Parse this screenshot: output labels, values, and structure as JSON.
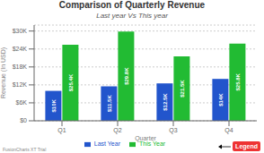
{
  "chart_data": {
    "type": "bar",
    "title": "Comparison of Quarterly Revenue",
    "subtitle": "Last year Vs This year",
    "xlabel": "Quarter",
    "ylabel": "Revenue (In USD)",
    "categories": [
      "Q1",
      "Q2",
      "Q3",
      "Q4"
    ],
    "series": [
      {
        "name": "Last Year",
        "color": "#2255cc",
        "values": [
          10000,
          11500,
          12500,
          14000
        ],
        "value_labels": [
          "$10K",
          "$11.5K",
          "$12.5K",
          "$14K"
        ]
      },
      {
        "name": "This Year",
        "color": "#22bb33",
        "values": [
          25400,
          29800,
          21500,
          25800
        ],
        "value_labels": [
          "$25.4K",
          "$29.8K",
          "$21.5K",
          "$25.8K"
        ]
      }
    ],
    "ylim": [
      0,
      32000
    ],
    "yticks": [
      {
        "value": 0,
        "label": "$0"
      },
      {
        "value": 6000,
        "label": "$6K"
      },
      {
        "value": 12000,
        "label": "$12K"
      },
      {
        "value": 18000,
        "label": "$18K"
      },
      {
        "value": 24000,
        "label": "$24K"
      },
      {
        "value": 30000,
        "label": "$30K"
      }
    ],
    "grid": true,
    "legend": "bottom",
    "data_labels": true,
    "annotations": [
      {
        "text": "Legend",
        "color": "#ee3333"
      },
      {
        "text": "FusionCharts XT Trial"
      }
    ]
  }
}
